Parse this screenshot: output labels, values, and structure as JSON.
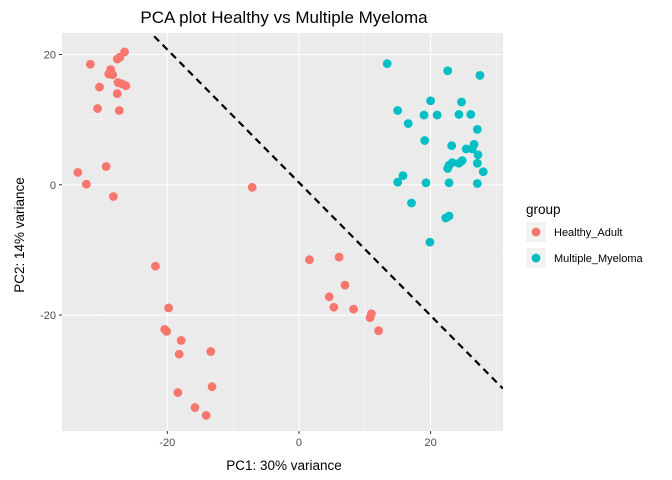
{
  "chart_data": {
    "type": "scatter",
    "title": "PCA plot Healthy vs Multiple Myeloma",
    "xlabel": "PC1: 30% variance",
    "ylabel": "PC2: 14% variance",
    "xlim": [
      -36,
      31
    ],
    "ylim": [
      -37.8,
      23.3
    ],
    "xticks": [
      -20,
      0,
      20
    ],
    "yticks": [
      -20,
      0,
      20
    ],
    "xtick_labels": [
      "-20",
      "0",
      "20"
    ],
    "ytick_labels": [
      "-20",
      "0",
      "20"
    ],
    "grid": true,
    "legend": {
      "title": "group",
      "position": "right"
    },
    "colors": {
      "panel": "#ebebeb",
      "grid_major": "#ffffff",
      "grid_minor": "#f5f5f5"
    },
    "series": [
      {
        "name": "Healthy_Adult",
        "color": "#f8766d",
        "points": [
          [
            -26.5,
            20.4
          ],
          [
            -27.2,
            19.6
          ],
          [
            -27.6,
            19.3
          ],
          [
            -31.7,
            18.5
          ],
          [
            -28.6,
            17.7
          ],
          [
            -28.9,
            17.0
          ],
          [
            -28.3,
            16.9
          ],
          [
            -27.5,
            15.7
          ],
          [
            -26.9,
            15.5
          ],
          [
            -26.3,
            15.2
          ],
          [
            -30.3,
            15.0
          ],
          [
            -27.6,
            14.0
          ],
          [
            -30.6,
            11.7
          ],
          [
            -27.3,
            11.4
          ],
          [
            -29.3,
            2.8
          ],
          [
            -33.6,
            1.9
          ],
          [
            -32.3,
            0.1
          ],
          [
            -28.2,
            -1.8
          ],
          [
            -7.1,
            -0.4
          ],
          [
            -21.8,
            -12.5
          ],
          [
            1.6,
            -11.5
          ],
          [
            6.1,
            -11.1
          ],
          [
            7.0,
            -15.4
          ],
          [
            4.6,
            -17.2
          ],
          [
            5.3,
            -18.8
          ],
          [
            8.3,
            -19.1
          ],
          [
            11.0,
            -19.8
          ],
          [
            10.8,
            -20.4
          ],
          [
            12.1,
            -22.4
          ],
          [
            -19.8,
            -18.9
          ],
          [
            -20.4,
            -22.2
          ],
          [
            -20.1,
            -22.5
          ],
          [
            -17.9,
            -23.9
          ],
          [
            -18.2,
            -26.0
          ],
          [
            -13.4,
            -25.6
          ],
          [
            -18.4,
            -31.9
          ],
          [
            -13.2,
            -31.0
          ],
          [
            -15.8,
            -34.2
          ],
          [
            -14.1,
            -35.4
          ]
        ]
      },
      {
        "name": "Multiple_Myeloma",
        "color": "#00bfc4",
        "points": [
          [
            13.4,
            18.6
          ],
          [
            22.6,
            17.5
          ],
          [
            27.5,
            16.8
          ],
          [
            20.0,
            12.9
          ],
          [
            24.7,
            12.7
          ],
          [
            15.0,
            11.4
          ],
          [
            21.0,
            10.7
          ],
          [
            19.0,
            10.7
          ],
          [
            24.3,
            10.8
          ],
          [
            26.1,
            10.8
          ],
          [
            16.6,
            9.4
          ],
          [
            27.1,
            8.5
          ],
          [
            19.1,
            6.8
          ],
          [
            23.2,
            6.0
          ],
          [
            25.4,
            5.5
          ],
          [
            26.3,
            5.5
          ],
          [
            26.6,
            6.2
          ],
          [
            27.2,
            4.6
          ],
          [
            24.8,
            3.7
          ],
          [
            24.3,
            3.3
          ],
          [
            22.8,
            3.0
          ],
          [
            23.3,
            3.4
          ],
          [
            27.1,
            3.3
          ],
          [
            22.6,
            2.5
          ],
          [
            28.0,
            2.0
          ],
          [
            15.8,
            1.4
          ],
          [
            15.0,
            0.4
          ],
          [
            19.3,
            0.3
          ],
          [
            22.8,
            0.3
          ],
          [
            27.1,
            0.2
          ],
          [
            17.1,
            -2.8
          ],
          [
            22.3,
            -5.1
          ],
          [
            22.8,
            -4.8
          ],
          [
            19.9,
            -8.8
          ]
        ]
      }
    ],
    "reference_line": {
      "style": "dashed",
      "color": "#000000",
      "x": [
        -22,
        31
      ],
      "y": [
        22.8,
        -31.3
      ]
    }
  }
}
